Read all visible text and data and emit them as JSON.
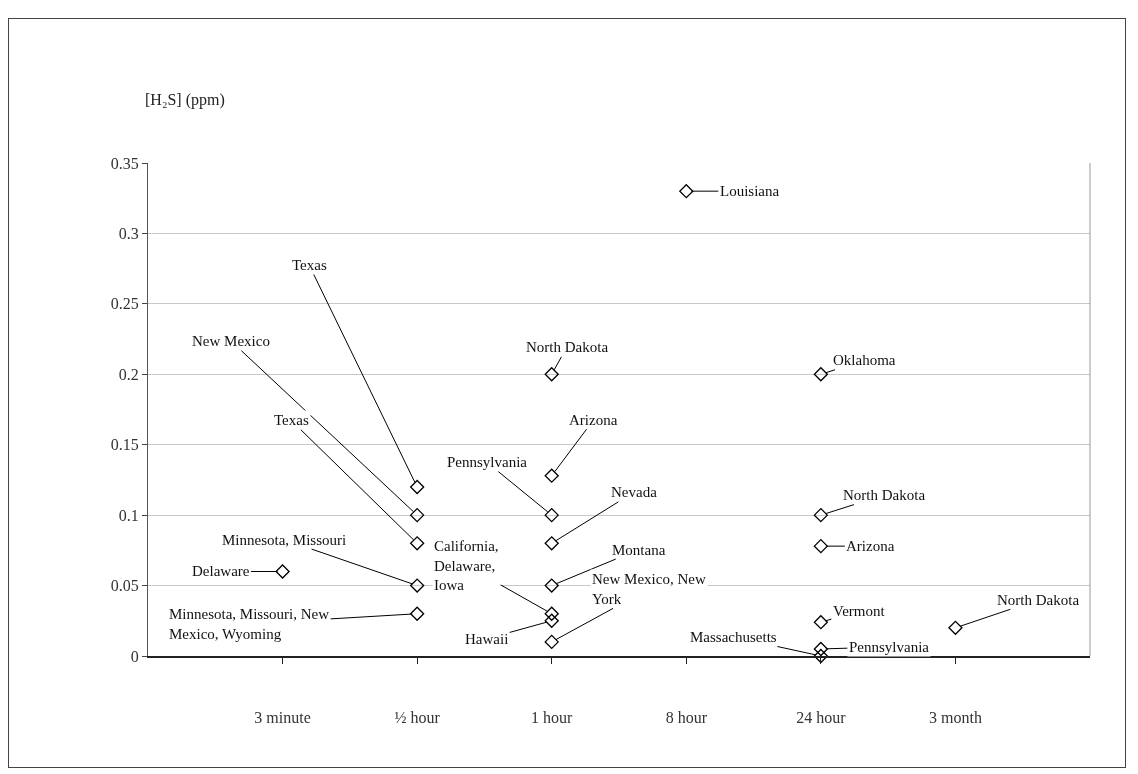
{
  "chart_data": {
    "type": "scatter",
    "ylabel": "[H₂S] (ppm)",
    "categories": [
      "3 minute",
      "½ hour",
      "1 hour",
      "8 hour",
      "24 hour",
      "3 month"
    ],
    "series": [
      {
        "color": "#000000",
        "x": [
          "3 minute",
          "½ hour",
          "½ hour",
          "½ hour",
          "½ hour",
          "½ hour",
          "1 hour",
          "1 hour",
          "1 hour",
          "1 hour",
          "1 hour",
          "1 hour",
          "1 hour",
          "1 hour",
          "8 hour",
          "24 hour",
          "24 hour",
          "24 hour",
          "24 hour",
          "24 hour",
          "24 hour",
          "3 month"
        ],
        "values": [
          0.06,
          0.12,
          0.1,
          0.08,
          0.05,
          0.03,
          0.2,
          0.128,
          0.1,
          0.08,
          0.05,
          0.03,
          0.025,
          0.01,
          0.33,
          0.2,
          0.1,
          0.078,
          0.024,
          0.005,
          0,
          0.02
        ]
      }
    ],
    "ylim": [
      0,
      0.35
    ],
    "yticks": [
      0,
      0.05,
      0.1,
      0.15,
      0.2,
      0.25,
      0.3,
      0.35
    ],
    "grid": "y",
    "marker": "diamond",
    "annotations": [
      {
        "text": "Delaware",
        "x": "3 minute",
        "y": 0.06
      },
      {
        "text": "Texas",
        "x": "½ hour",
        "y": 0.12
      },
      {
        "text": "New Mexico",
        "x": "½ hour",
        "y": 0.1
      },
      {
        "text": "Texas",
        "x": "½ hour",
        "y": 0.08
      },
      {
        "text": "Minnesota, Missouri",
        "x": "½ hour",
        "y": 0.05
      },
      {
        "text": "Minnesota, Missouri, New\nMexico, Wyoming",
        "x": "½ hour",
        "y": 0.03
      },
      {
        "text": "North Dakota",
        "x": "1 hour",
        "y": 0.2
      },
      {
        "text": "Arizona",
        "x": "1 hour",
        "y": 0.128
      },
      {
        "text": "Pennsylvania",
        "x": "1 hour",
        "y": 0.1
      },
      {
        "text": "Nevada",
        "x": "1 hour",
        "y": 0.08
      },
      {
        "text": "Montana",
        "x": "1 hour",
        "y": 0.05
      },
      {
        "text": "California,\nDelaware,\nIowa",
        "x": "1 hour",
        "y": 0.03
      },
      {
        "text": "Hawaii",
        "x": "1 hour",
        "y": 0.025
      },
      {
        "text": "New Mexico, New\nYork",
        "x": "1 hour",
        "y": 0.01
      },
      {
        "text": "Louisiana",
        "x": "8 hour",
        "y": 0.33
      },
      {
        "text": "Oklahoma",
        "x": "24 hour",
        "y": 0.2
      },
      {
        "text": "North Dakota",
        "x": "24 hour",
        "y": 0.1
      },
      {
        "text": "Arizona",
        "x": "24 hour",
        "y": 0.078
      },
      {
        "text": "Vermont",
        "x": "24 hour",
        "y": 0.024
      },
      {
        "text": "Pennsylvania",
        "x": "24 hour",
        "y": 0.005
      },
      {
        "text": "Massachusetts",
        "x": "24 hour",
        "y": 0
      },
      {
        "text": "North Dakota",
        "x": "3 month",
        "y": 0.02
      }
    ]
  }
}
